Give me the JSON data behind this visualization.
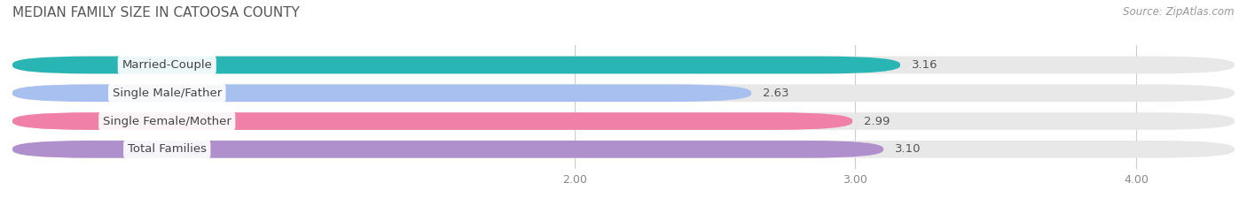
{
  "title": "MEDIAN FAMILY SIZE IN CATOOSA COUNTY",
  "source": "Source: ZipAtlas.com",
  "categories": [
    "Married-Couple",
    "Single Male/Father",
    "Single Female/Mother",
    "Total Families"
  ],
  "values": [
    3.16,
    2.63,
    2.99,
    3.1
  ],
  "bar_colors": [
    "#2ab5b5",
    "#a8c0f0",
    "#f080a8",
    "#b090cc"
  ],
  "background_color": "#ffffff",
  "bar_bg_color": "#e8e8e8",
  "xmin": 0.0,
  "xmax": 4.35,
  "xlim_display": [
    1.5,
    4.35
  ],
  "xticks": [
    2.0,
    3.0,
    4.0
  ],
  "xtick_labels": [
    "2.00",
    "3.00",
    "4.00"
  ],
  "bar_height": 0.62,
  "label_fontsize": 9.5,
  "title_fontsize": 11,
  "value_fontsize": 9.5,
  "source_fontsize": 8.5
}
